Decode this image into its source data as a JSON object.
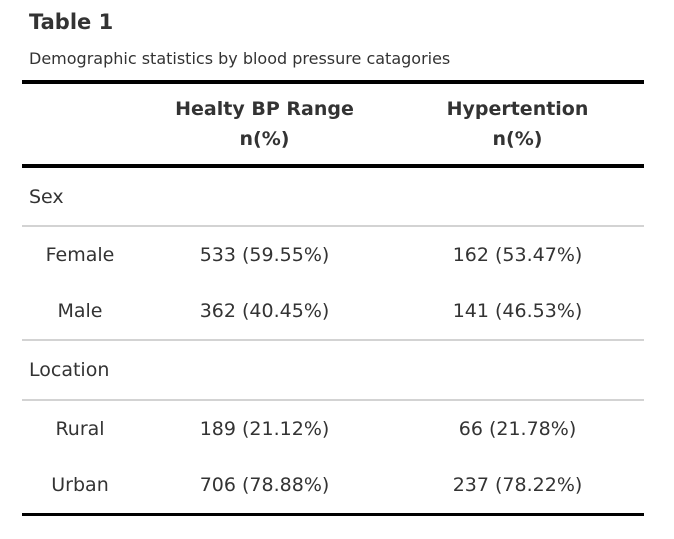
{
  "title": "Table 1",
  "subtitle": "Demographic statistics by blood pressure catagories",
  "columns": [
    {
      "line1": "",
      "line2": ""
    },
    {
      "line1": "Healty BP Range",
      "line2": "n(%)"
    },
    {
      "line1": "Hypertention",
      "line2": "n(%)"
    }
  ],
  "groups": [
    {
      "label": "Sex",
      "rows": [
        {
          "label": "Female",
          "healthy": "533 (59.55%)",
          "hyper": "162 (53.47%)"
        },
        {
          "label": "Male",
          "healthy": "362 (40.45%)",
          "hyper": "141 (46.53%)"
        }
      ]
    },
    {
      "label": "Location",
      "rows": [
        {
          "label": "Rural",
          "healthy": "189 (21.12%)",
          "hyper": "66 (21.78%)"
        },
        {
          "label": "Urban",
          "healthy": "706 (78.88%)",
          "hyper": "237 (78.22%)"
        }
      ]
    }
  ]
}
